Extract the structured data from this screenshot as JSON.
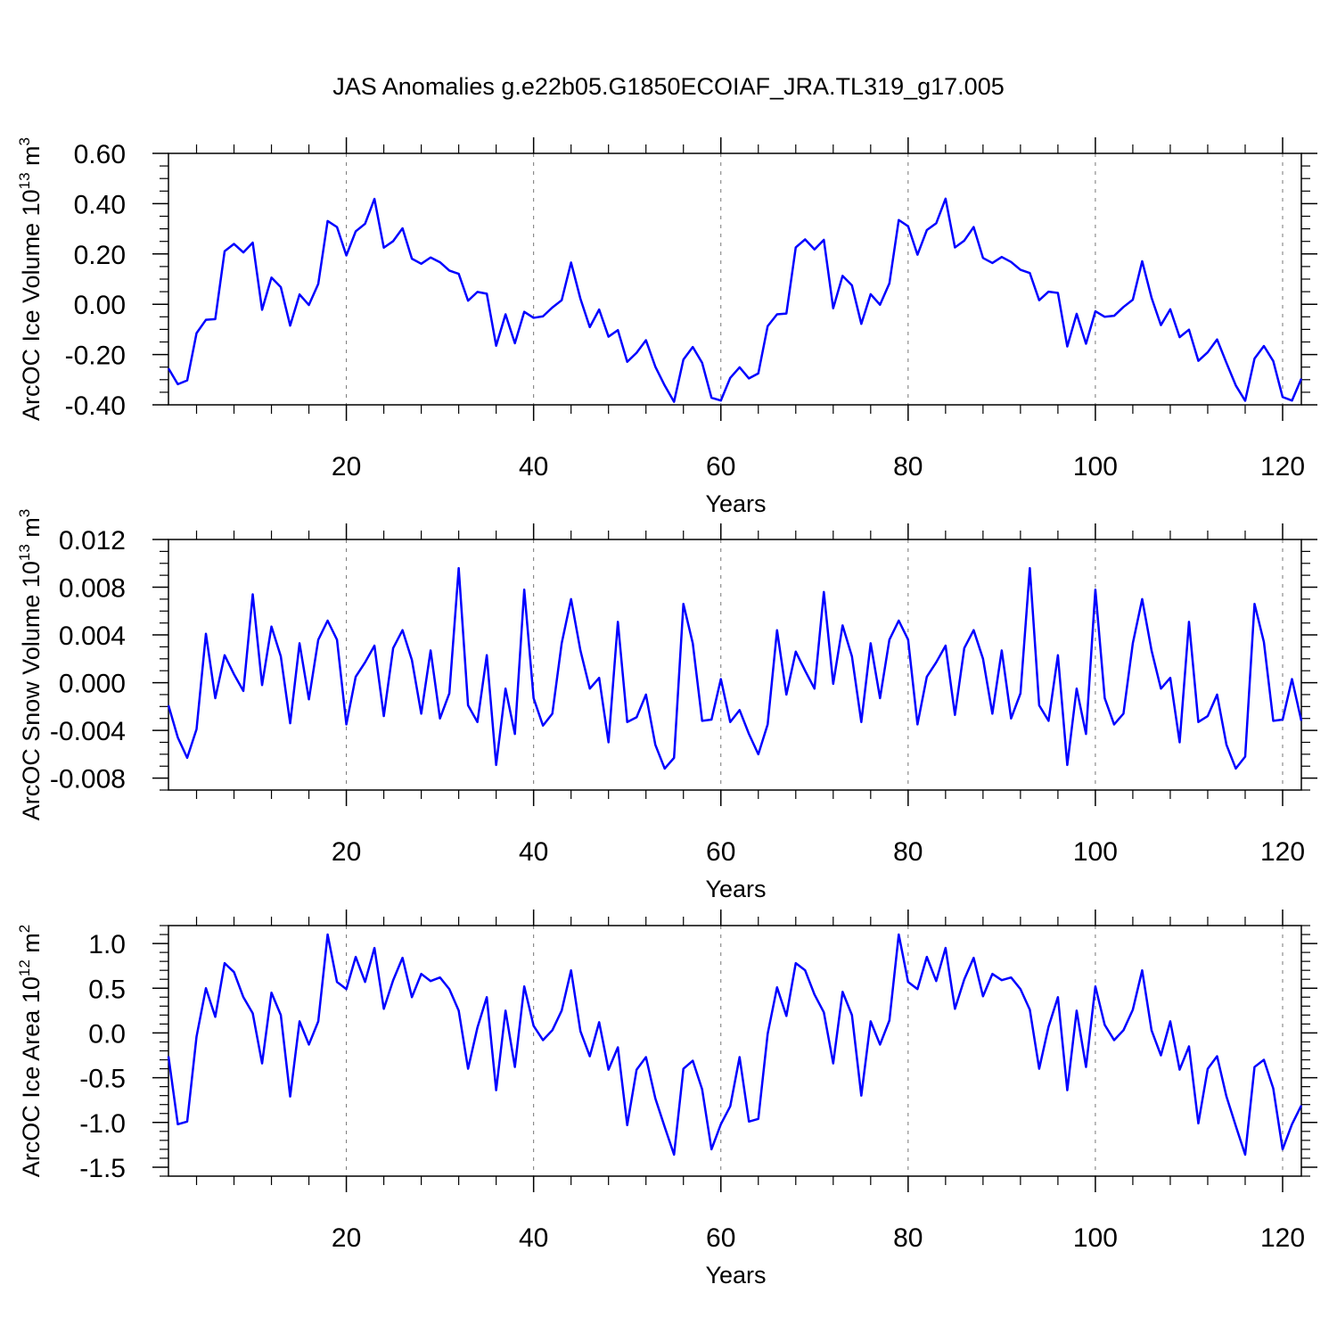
{
  "title": "JAS Anomalies g.e22b05.G1850ECOIAF_JRA.TL319_g17.005",
  "colors": {
    "line": "#0000ff",
    "axis": "#000000",
    "grid": "#777777"
  },
  "chart_data": [
    {
      "type": "line",
      "name": "ice-volume",
      "ylabel": {
        "main": "ArcOC Ice Volume 10",
        "exp": "13",
        "unit": " m",
        "unit_exp": "3"
      },
      "xlabel": "Years",
      "xlim": [
        1,
        122
      ],
      "ylim": [
        -0.4,
        0.6
      ],
      "yticks": [
        -0.4,
        -0.2,
        0.0,
        0.2,
        0.4,
        0.6
      ],
      "ytick_labels": [
        "-0.40",
        "-0.20",
        "0.00",
        "0.20",
        "0.40",
        "0.60"
      ],
      "ytick_minor": 0.05,
      "xticks": [
        20,
        40,
        60,
        80,
        100,
        120
      ],
      "xtick_labels": [
        "20",
        "40",
        "60",
        "80",
        "100",
        "120"
      ],
      "xtick_minor": 4,
      "grid_x": true,
      "series": [
        {
          "name": "ice volume anomaly",
          "x_start": 1,
          "values": [
            -0.255,
            -0.318,
            -0.303,
            -0.115,
            -0.062,
            -0.059,
            0.211,
            0.24,
            0.206,
            0.245,
            -0.022,
            0.106,
            0.068,
            -0.085,
            0.039,
            -0.003,
            0.081,
            0.331,
            0.307,
            0.194,
            0.29,
            0.32,
            0.419,
            0.225,
            0.251,
            0.302,
            0.181,
            0.161,
            0.186,
            0.167,
            0.134,
            0.121,
            0.014,
            0.049,
            0.042,
            -0.165,
            -0.04,
            -0.155,
            -0.03,
            -0.054,
            -0.048,
            -0.013,
            0.016,
            0.166,
            0.022,
            -0.091,
            -0.021,
            -0.129,
            -0.103,
            -0.229,
            -0.193,
            -0.143,
            -0.248,
            -0.323,
            -0.388,
            -0.22,
            -0.17,
            -0.233,
            -0.372,
            -0.383,
            -0.293,
            -0.251,
            -0.295,
            -0.275,
            -0.087,
            -0.04,
            -0.037,
            0.226,
            0.258,
            0.218,
            0.256,
            -0.016,
            0.113,
            0.075,
            -0.078,
            0.04,
            -0.002,
            0.083,
            0.335,
            0.31,
            0.197,
            0.295,
            0.322,
            0.42,
            0.226,
            0.253,
            0.307,
            0.184,
            0.164,
            0.188,
            0.168,
            0.137,
            0.124,
            0.016,
            0.05,
            0.045,
            -0.168,
            -0.038,
            -0.157,
            -0.028,
            -0.05,
            -0.046,
            -0.011,
            0.018,
            0.171,
            0.026,
            -0.083,
            -0.02,
            -0.131,
            -0.101,
            -0.225,
            -0.191,
            -0.14,
            -0.233,
            -0.323,
            -0.384,
            -0.216,
            -0.166,
            -0.226,
            -0.369,
            -0.383,
            -0.296
          ]
        }
      ]
    },
    {
      "type": "line",
      "name": "snow-volume",
      "ylabel": {
        "main": "ArcOC Snow Volume 10",
        "exp": "13",
        "unit": " m",
        "unit_exp": "3"
      },
      "xlabel": "Years",
      "xlim": [
        1,
        122
      ],
      "ylim": [
        -0.009,
        0.012
      ],
      "yticks": [
        -0.008,
        -0.004,
        0.0,
        0.004,
        0.008,
        0.012
      ],
      "ytick_labels": [
        "-0.008",
        "-0.004",
        "0.000",
        "0.004",
        "0.008",
        "0.012"
      ],
      "ytick_minor": 0.001,
      "xticks": [
        20,
        40,
        60,
        80,
        100,
        120
      ],
      "xtick_labels": [
        "20",
        "40",
        "60",
        "80",
        "100",
        "120"
      ],
      "xtick_minor": 4,
      "grid_x": true,
      "series": [
        {
          "name": "snow volume anomaly",
          "x_start": 1,
          "values": [
            -0.0019,
            -0.0046,
            -0.0063,
            -0.0039,
            0.0041,
            -0.0013,
            0.0023,
            0.0007,
            -0.0007,
            0.0074,
            -0.0002,
            0.0047,
            0.0022,
            -0.0034,
            0.0033,
            -0.0014,
            0.0036,
            0.0052,
            0.0036,
            -0.0035,
            0.0005,
            0.0017,
            0.0031,
            -0.0028,
            0.0029,
            0.0044,
            0.0019,
            -0.0026,
            0.0027,
            -0.003,
            -0.0009,
            0.0096,
            -0.0019,
            -0.0033,
            0.0023,
            -0.0069,
            -0.0005,
            -0.0043,
            0.0078,
            -0.0013,
            -0.0036,
            -0.0026,
            0.0033,
            0.007,
            0.0027,
            -0.0005,
            0.0004,
            -0.005,
            0.0051,
            -0.0033,
            -0.0029,
            -0.001,
            -0.0052,
            -0.0072,
            -0.0063,
            0.0066,
            0.0033,
            -0.0032,
            -0.0031,
            0.0003,
            -0.0033,
            -0.0023,
            -0.0043,
            -0.006,
            -0.0035,
            0.0044,
            -0.001,
            0.0026,
            0.001,
            -0.0005,
            0.0076,
            -0.0001,
            0.0048,
            0.0022,
            -0.0033,
            0.0033,
            -0.0013,
            0.0036,
            0.0052,
            0.0036,
            -0.0035,
            0.0005,
            0.0017,
            0.0031,
            -0.0027,
            0.0029,
            0.0044,
            0.002,
            -0.0026,
            0.0027,
            -0.003,
            -0.0009,
            0.0096,
            -0.0019,
            -0.0032,
            0.0023,
            -0.0069,
            -0.0005,
            -0.0043,
            0.0078,
            -0.0013,
            -0.0035,
            -0.0026,
            0.0033,
            0.007,
            0.0027,
            -0.0005,
            0.0004,
            -0.005,
            0.0051,
            -0.0033,
            -0.0028,
            -0.001,
            -0.0052,
            -0.0072,
            -0.0062,
            0.0066,
            0.0034,
            -0.0032,
            -0.0031,
            0.0003,
            -0.0032
          ]
        }
      ]
    },
    {
      "type": "line",
      "name": "ice-area",
      "ylabel": {
        "main": "ArcOC Ice Area 10",
        "exp": "12",
        "unit": " m",
        "unit_exp": "2"
      },
      "xlabel": "Years",
      "xlim": [
        1,
        122
      ],
      "ylim": [
        -1.6,
        1.2
      ],
      "yticks": [
        -1.5,
        -1.0,
        -0.5,
        0.0,
        0.5,
        1.0
      ],
      "ytick_labels": [
        "-1.5",
        "-1.0",
        "-0.5",
        "0.0",
        "0.5",
        "1.0"
      ],
      "ytick_minor": 0.1,
      "xticks": [
        20,
        40,
        60,
        80,
        100,
        120
      ],
      "xtick_labels": [
        "20",
        "40",
        "60",
        "80",
        "100",
        "120"
      ],
      "xtick_minor": 4,
      "grid_x": true,
      "series": [
        {
          "name": "ice area anomaly",
          "x_start": 1,
          "values": [
            -0.26,
            -1.02,
            -0.99,
            -0.04,
            0.5,
            0.18,
            0.78,
            0.68,
            0.4,
            0.22,
            -0.34,
            0.45,
            0.2,
            -0.71,
            0.13,
            -0.13,
            0.13,
            1.1,
            0.57,
            0.49,
            0.85,
            0.57,
            0.95,
            0.27,
            0.59,
            0.84,
            0.4,
            0.66,
            0.58,
            0.62,
            0.49,
            0.25,
            -0.4,
            0.06,
            0.4,
            -0.64,
            0.25,
            -0.38,
            0.52,
            0.08,
            -0.08,
            0.03,
            0.25,
            0.7,
            0.02,
            -0.26,
            0.12,
            -0.41,
            -0.16,
            -1.03,
            -0.41,
            -0.27,
            -0.73,
            -1.05,
            -1.36,
            -0.4,
            -0.31,
            -0.63,
            -1.3,
            -1.02,
            -0.82,
            -0.27,
            -0.99,
            -0.96,
            -0.01,
            0.51,
            0.19,
            0.78,
            0.7,
            0.43,
            0.23,
            -0.34,
            0.46,
            0.2,
            -0.7,
            0.13,
            -0.13,
            0.14,
            1.1,
            0.57,
            0.49,
            0.85,
            0.58,
            0.95,
            0.27,
            0.6,
            0.84,
            0.41,
            0.66,
            0.59,
            0.62,
            0.49,
            0.26,
            -0.4,
            0.07,
            0.4,
            -0.64,
            0.25,
            -0.38,
            0.52,
            0.09,
            -0.08,
            0.03,
            0.26,
            0.7,
            0.03,
            -0.25,
            0.13,
            -0.41,
            -0.15,
            -1.01,
            -0.4,
            -0.26,
            -0.71,
            -1.04,
            -1.36,
            -0.38,
            -0.3,
            -0.62,
            -1.3,
            -1.02,
            -0.81
          ]
        }
      ]
    }
  ]
}
